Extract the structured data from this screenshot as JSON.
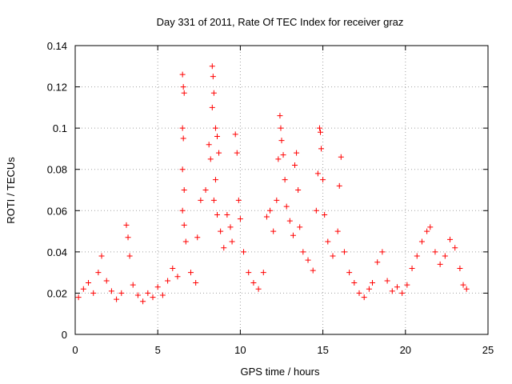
{
  "chart_data": {
    "type": "scatter",
    "title": "Day 331 of 2011, Rate Of TEC Index for receiver graz",
    "xlabel": "GPS time / hours",
    "ylabel": "ROTI / TECUs",
    "xlim": [
      0,
      25
    ],
    "ylim": [
      0,
      0.14
    ],
    "x_ticks": [
      "0",
      "5",
      "10",
      "15",
      "20",
      "25"
    ],
    "y_ticks": [
      "0",
      "0.02",
      "0.04",
      "0.06",
      "0.08",
      "0.1",
      "0.12",
      "0.14"
    ],
    "grid": true,
    "marker": "+",
    "marker_color": "#ff0000",
    "series": [
      {
        "points": [
          [
            0.2,
            0.018
          ],
          [
            0.5,
            0.022
          ],
          [
            0.8,
            0.025
          ],
          [
            1.1,
            0.02
          ],
          [
            1.4,
            0.03
          ],
          [
            1.6,
            0.038
          ],
          [
            1.9,
            0.026
          ],
          [
            2.2,
            0.021
          ],
          [
            2.5,
            0.017
          ],
          [
            2.8,
            0.02
          ],
          [
            3.1,
            0.053
          ],
          [
            3.2,
            0.047
          ],
          [
            3.3,
            0.038
          ],
          [
            3.5,
            0.024
          ],
          [
            3.8,
            0.019
          ],
          [
            4.1,
            0.016
          ],
          [
            4.4,
            0.02
          ],
          [
            4.7,
            0.018
          ],
          [
            5.0,
            0.023
          ],
          [
            5.3,
            0.019
          ],
          [
            5.6,
            0.026
          ],
          [
            5.9,
            0.032
          ],
          [
            6.2,
            0.028
          ],
          [
            6.5,
            0.126
          ],
          [
            6.55,
            0.12
          ],
          [
            6.6,
            0.117
          ],
          [
            6.5,
            0.1
          ],
          [
            6.55,
            0.095
          ],
          [
            6.5,
            0.08
          ],
          [
            6.6,
            0.07
          ],
          [
            6.5,
            0.06
          ],
          [
            6.6,
            0.053
          ],
          [
            6.7,
            0.045
          ],
          [
            7.0,
            0.03
          ],
          [
            7.3,
            0.025
          ],
          [
            7.4,
            0.047
          ],
          [
            7.6,
            0.065
          ],
          [
            7.9,
            0.07
          ],
          [
            8.1,
            0.092
          ],
          [
            8.2,
            0.085
          ],
          [
            8.3,
            0.13
          ],
          [
            8.35,
            0.125
          ],
          [
            8.4,
            0.117
          ],
          [
            8.3,
            0.11
          ],
          [
            8.5,
            0.1
          ],
          [
            8.6,
            0.096
          ],
          [
            8.7,
            0.088
          ],
          [
            8.5,
            0.075
          ],
          [
            8.4,
            0.065
          ],
          [
            8.6,
            0.058
          ],
          [
            8.8,
            0.05
          ],
          [
            9.0,
            0.042
          ],
          [
            9.2,
            0.058
          ],
          [
            9.4,
            0.052
          ],
          [
            9.5,
            0.045
          ],
          [
            9.7,
            0.097
          ],
          [
            9.8,
            0.088
          ],
          [
            9.9,
            0.065
          ],
          [
            10.0,
            0.056
          ],
          [
            10.2,
            0.04
          ],
          [
            10.5,
            0.03
          ],
          [
            10.8,
            0.025
          ],
          [
            11.1,
            0.022
          ],
          [
            11.4,
            0.03
          ],
          [
            11.6,
            0.057
          ],
          [
            11.8,
            0.06
          ],
          [
            12.0,
            0.05
          ],
          [
            12.2,
            0.065
          ],
          [
            12.3,
            0.085
          ],
          [
            12.4,
            0.106
          ],
          [
            12.45,
            0.1
          ],
          [
            12.5,
            0.094
          ],
          [
            12.6,
            0.087
          ],
          [
            12.7,
            0.075
          ],
          [
            12.8,
            0.062
          ],
          [
            13.0,
            0.055
          ],
          [
            13.2,
            0.048
          ],
          [
            13.3,
            0.082
          ],
          [
            13.4,
            0.088
          ],
          [
            13.5,
            0.07
          ],
          [
            13.6,
            0.052
          ],
          [
            13.8,
            0.04
          ],
          [
            14.1,
            0.036
          ],
          [
            14.4,
            0.031
          ],
          [
            14.6,
            0.06
          ],
          [
            14.7,
            0.078
          ],
          [
            14.8,
            0.1
          ],
          [
            14.85,
            0.098
          ],
          [
            14.9,
            0.09
          ],
          [
            15.0,
            0.075
          ],
          [
            15.1,
            0.058
          ],
          [
            15.3,
            0.045
          ],
          [
            15.6,
            0.038
          ],
          [
            15.9,
            0.05
          ],
          [
            16.0,
            0.072
          ],
          [
            16.1,
            0.086
          ],
          [
            16.3,
            0.04
          ],
          [
            16.6,
            0.03
          ],
          [
            16.9,
            0.025
          ],
          [
            17.2,
            0.02
          ],
          [
            17.5,
            0.018
          ],
          [
            17.8,
            0.022
          ],
          [
            18.0,
            0.025
          ],
          [
            18.3,
            0.035
          ],
          [
            18.6,
            0.04
          ],
          [
            18.9,
            0.026
          ],
          [
            19.2,
            0.021
          ],
          [
            19.5,
            0.023
          ],
          [
            19.8,
            0.02
          ],
          [
            20.1,
            0.024
          ],
          [
            20.4,
            0.032
          ],
          [
            20.7,
            0.038
          ],
          [
            21.0,
            0.045
          ],
          [
            21.3,
            0.05
          ],
          [
            21.5,
            0.052
          ],
          [
            21.8,
            0.04
          ],
          [
            22.1,
            0.034
          ],
          [
            22.4,
            0.038
          ],
          [
            22.7,
            0.046
          ],
          [
            23.0,
            0.042
          ],
          [
            23.3,
            0.032
          ],
          [
            23.5,
            0.024
          ],
          [
            23.7,
            0.022
          ]
        ]
      }
    ]
  }
}
